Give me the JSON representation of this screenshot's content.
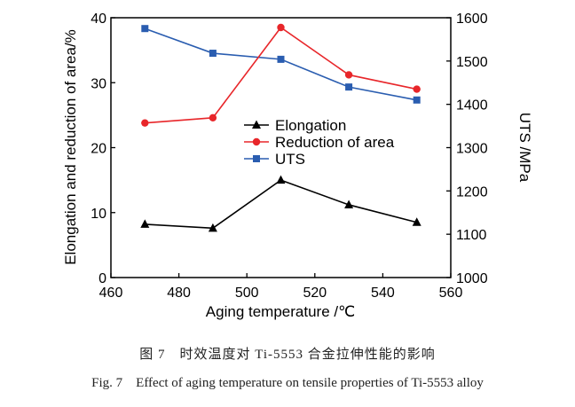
{
  "chart_data": {
    "type": "line",
    "xlabel": "Aging temperature /℃",
    "ylabel_left": "Elongation and reduction of area/%",
    "ylabel_right": "UTS /MPa",
    "xlim": [
      460,
      560
    ],
    "ylim_left": [
      0,
      40
    ],
    "ylim_right": [
      1000,
      1600
    ],
    "x_ticks": [
      460,
      480,
      500,
      520,
      540,
      560
    ],
    "y_left_ticks": [
      0,
      10,
      20,
      30,
      40
    ],
    "y_right_ticks": [
      1000,
      1100,
      1200,
      1300,
      1400,
      1500,
      1600
    ],
    "x": [
      470,
      490,
      510,
      530,
      550
    ],
    "legend_position": "center-right",
    "series": [
      {
        "name": "Elongation",
        "axis": "left",
        "marker": "triangle",
        "color": "#000000",
        "values": [
          8.2,
          7.6,
          15.0,
          11.2,
          8.5
        ]
      },
      {
        "name": "Reduction of area",
        "axis": "left",
        "marker": "circle",
        "color": "#e8262a",
        "values": [
          23.8,
          24.6,
          38.5,
          31.2,
          29.0
        ]
      },
      {
        "name": "UTS",
        "axis": "right",
        "marker": "square",
        "color": "#2a5db0",
        "values": [
          1575,
          1518,
          1504,
          1440,
          1410
        ]
      }
    ]
  },
  "caption_cn": "图 7　时效温度对 Ti-5553 合金拉伸性能的影响",
  "caption_en": "Fig. 7　Effect of aging temperature on tensile properties of Ti-5553 alloy"
}
